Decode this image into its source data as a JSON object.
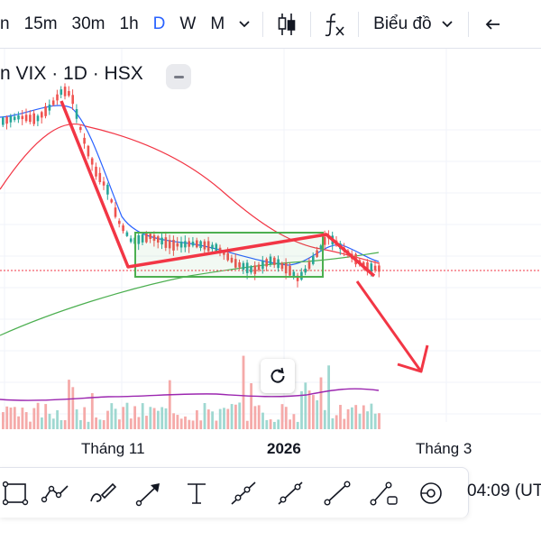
{
  "toolbar": {
    "timeframes": [
      "n",
      "15m",
      "30m",
      "1h",
      "D",
      "W",
      "M"
    ],
    "active_timeframe": "D",
    "chart_type_label": "Biểu đồ",
    "icons": [
      "chevron-down-icon",
      "candles-icon",
      "fx-icon",
      "chevron-down-icon",
      "arrow-left-icon"
    ]
  },
  "symbol": {
    "title": "n VIX · 1D · HSX"
  },
  "x_axis": {
    "labels": [
      "Tháng 11",
      "2026",
      "Tháng 3"
    ],
    "bold": [
      "2026"
    ]
  },
  "time_display": "04:09 (UT",
  "drawing_tools": [
    "rectangle-tool-icon",
    "path-tool-icon",
    "brush-tool-icon",
    "arrow-tool-icon",
    "text-tool-icon",
    "ray-tool-icon",
    "trend-line-tool-icon",
    "extended-line-tool-icon",
    "info-line-tool-icon",
    "magnet-tool-icon"
  ],
  "colors": {
    "up_candle": "#26a69a",
    "down_candle": "#ef5350",
    "ma_fast": "#2962ff",
    "ma_mid": "#f23645",
    "ma_slow": "#4caf50",
    "indicator": "#9c27b0",
    "annotation_red": "#f23645",
    "annotation_green": "#4caf50",
    "price_line": "#f23645",
    "active_timeframe": "#2962ff"
  }
}
